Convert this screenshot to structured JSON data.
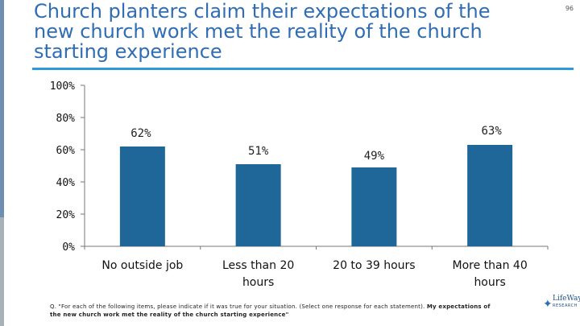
{
  "slide": {
    "title": "Church planters claim their expectations of the new church work met the reality of the church starting experience",
    "page_number": "96",
    "footnote_question": "Q. \"For each of the following items, please indicate if it was true for your situation. (Select one response for each statement). ",
    "footnote_statement": "My expectations of the new church work met the reality of the church starting experience\"",
    "logo": {
      "icon": "lifeway-flame-icon",
      "name": "LifeWay",
      "subtitle": "RESEARCH"
    }
  },
  "colors": {
    "bar": "#1f6699",
    "title": "#2f6db4",
    "rule": "#2a9bd6"
  },
  "chart_data": {
    "type": "bar",
    "title": "",
    "xlabel": "",
    "ylabel": "",
    "ylim": [
      0,
      100
    ],
    "yticks": [
      0,
      20,
      40,
      60,
      80,
      100
    ],
    "ytick_labels": [
      "0%",
      "20%",
      "40%",
      "60%",
      "80%",
      "100%"
    ],
    "categories": [
      "No outside job",
      "Less than 20 hours",
      "20 to 39 hours",
      "More than 40 hours"
    ],
    "category_lines": [
      [
        "No outside job"
      ],
      [
        "Less than 20",
        "hours"
      ],
      [
        "20 to 39 hours"
      ],
      [
        "More than 40",
        "hours"
      ]
    ],
    "values": [
      62,
      51,
      49,
      63
    ],
    "value_labels": [
      "62%",
      "51%",
      "49%",
      "63%"
    ]
  }
}
